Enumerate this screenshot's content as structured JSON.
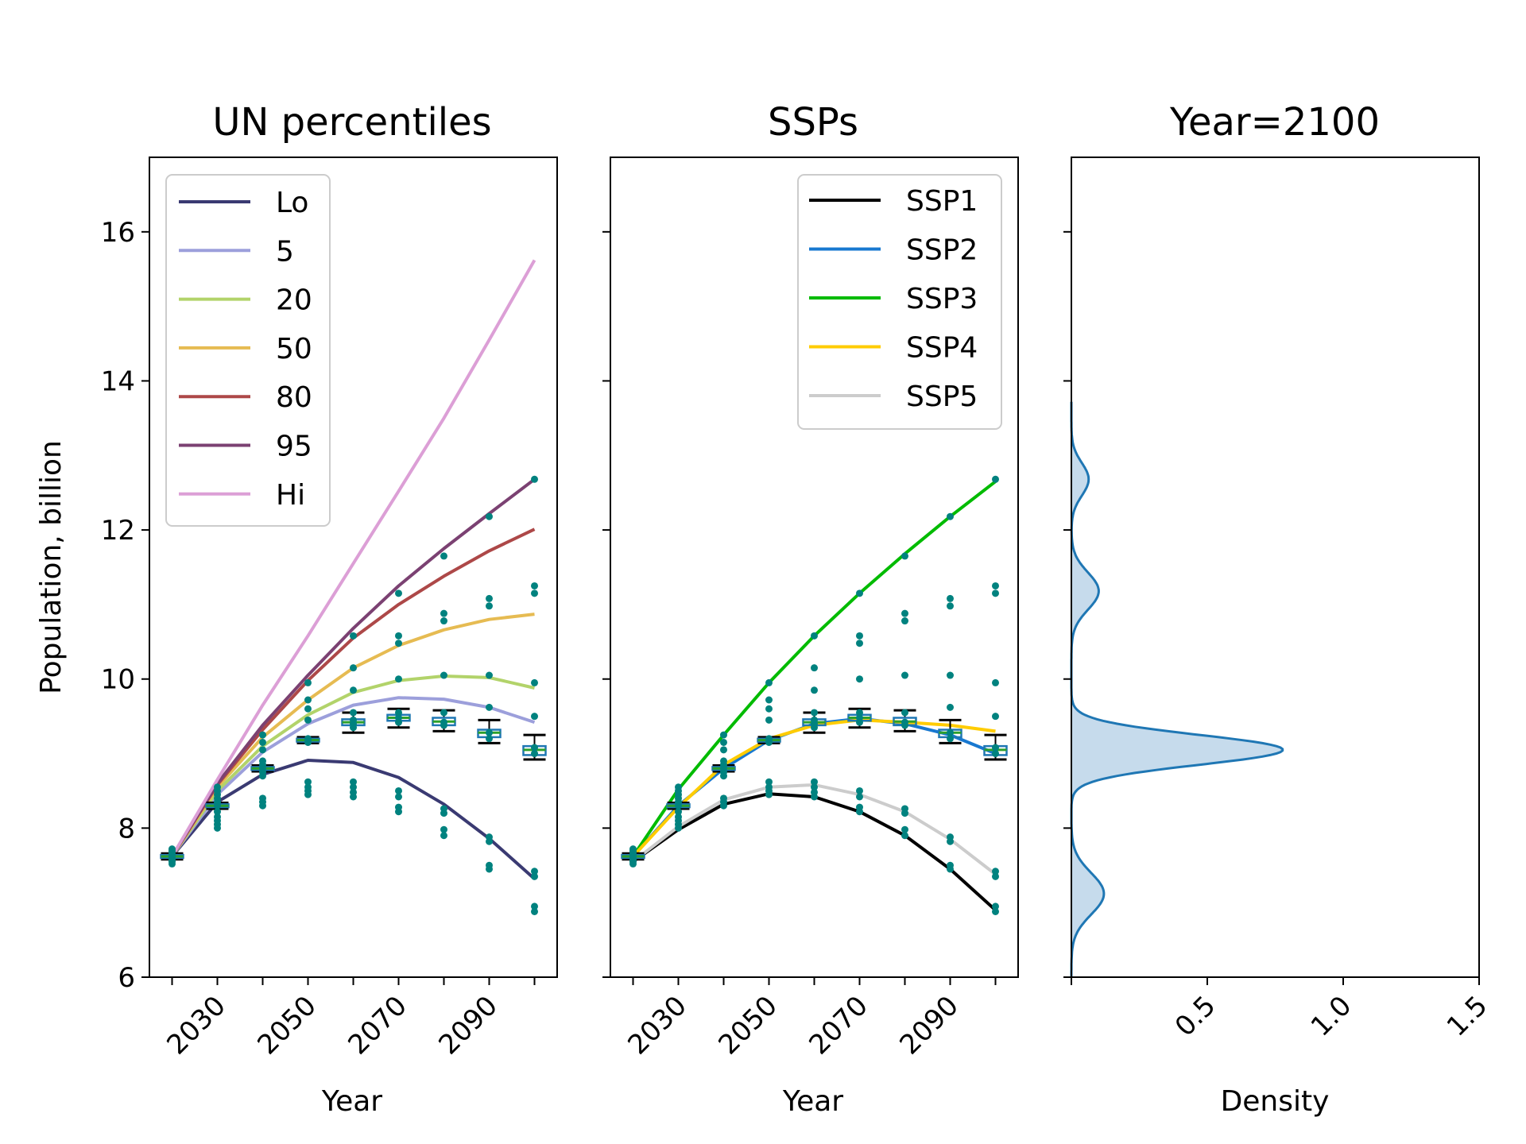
{
  "chart_data": [
    {
      "type": "line",
      "title": "UN percentiles",
      "xlabel": "Year",
      "ylabel": "Population, billion",
      "xlim": [
        2015,
        2105
      ],
      "ylim": [
        6,
        17
      ],
      "x_ticks": [
        2030,
        2050,
        2070,
        2090
      ],
      "y_ticks": [
        6,
        8,
        10,
        12,
        14,
        16
      ],
      "legend_position": "top-left",
      "x": [
        2020,
        2030,
        2040,
        2050,
        2060,
        2070,
        2080,
        2090,
        2100
      ],
      "series": [
        {
          "name": "Lo",
          "color": "#3a3a72",
          "values": [
            7.62,
            8.35,
            8.72,
            8.91,
            8.88,
            8.68,
            8.32,
            7.86,
            7.32
          ]
        },
        {
          "name": "5",
          "color": "#9c9fdb",
          "values": [
            7.62,
            8.45,
            9.02,
            9.4,
            9.65,
            9.75,
            9.73,
            9.62,
            9.42
          ]
        },
        {
          "name": "20",
          "color": "#b2d36a",
          "values": [
            7.62,
            8.5,
            9.1,
            9.52,
            9.82,
            9.98,
            10.04,
            10.02,
            9.88
          ]
        },
        {
          "name": "50",
          "color": "#e6bb52",
          "values": [
            7.62,
            8.55,
            9.22,
            9.72,
            10.15,
            10.45,
            10.66,
            10.8,
            10.87
          ]
        },
        {
          "name": "80",
          "color": "#ad4848",
          "values": [
            7.62,
            8.58,
            9.32,
            9.98,
            10.55,
            11.0,
            11.38,
            11.72,
            12.01
          ]
        },
        {
          "name": "95",
          "color": "#7b4172",
          "values": [
            7.62,
            8.6,
            9.38,
            10.05,
            10.68,
            11.25,
            11.75,
            12.22,
            12.68
          ]
        },
        {
          "name": "Hi",
          "color": "#dc9fd6",
          "values": [
            7.62,
            8.65,
            9.65,
            10.58,
            11.55,
            12.52,
            13.5,
            14.55,
            15.62
          ]
        }
      ]
    },
    {
      "type": "line",
      "title": "SSPs",
      "xlabel": "Year",
      "ylabel": "",
      "xlim": [
        2015,
        2105
      ],
      "ylim": [
        6,
        17
      ],
      "x_ticks": [
        2030,
        2050,
        2070,
        2090
      ],
      "legend_position": "top-right",
      "x": [
        2020,
        2030,
        2040,
        2050,
        2060,
        2070,
        2080,
        2090,
        2100
      ],
      "series": [
        {
          "name": "SSP1",
          "color": "#000000",
          "values": [
            7.55,
            7.98,
            8.32,
            8.46,
            8.42,
            8.22,
            7.9,
            7.45,
            6.9
          ]
        },
        {
          "name": "SSP2",
          "color": "#1878d0",
          "values": [
            7.62,
            8.3,
            8.8,
            9.18,
            9.4,
            9.47,
            9.4,
            9.25,
            9.0
          ]
        },
        {
          "name": "SSP3",
          "color": "#00bb00",
          "values": [
            7.62,
            8.52,
            9.25,
            9.95,
            10.58,
            11.15,
            11.68,
            12.18,
            12.65
          ]
        },
        {
          "name": "SSP4",
          "color": "#ffcc00",
          "values": [
            7.62,
            8.28,
            8.85,
            9.2,
            9.38,
            9.45,
            9.42,
            9.38,
            9.3
          ]
        },
        {
          "name": "SSP5",
          "color": "#cccccc",
          "values": [
            7.55,
            8.02,
            8.38,
            8.55,
            8.58,
            8.45,
            8.22,
            7.85,
            7.38
          ]
        }
      ]
    },
    {
      "type": "area",
      "title": "Year=2100",
      "xlabel": "Density",
      "ylabel": "",
      "xlim": [
        0,
        1.5
      ],
      "ylim": [
        6,
        17
      ],
      "x_ticks": [
        0.5,
        1.0,
        1.5
      ],
      "orientation": "horizontal",
      "color": "#1f77b4",
      "fill_color": "#c6dbec",
      "components": [
        {
          "mean": 9.05,
          "sd": 0.2,
          "weight": 0.39
        },
        {
          "mean": 7.12,
          "sd": 0.28,
          "weight": 0.084
        },
        {
          "mean": 11.18,
          "sd": 0.25,
          "weight": 0.063
        },
        {
          "mean": 12.68,
          "sd": 0.22,
          "weight": 0.035
        }
      ]
    }
  ],
  "scatter_points": {
    "x": [
      2020,
      2030,
      2040,
      2050,
      2060,
      2070,
      2080,
      2090,
      2100
    ],
    "values": [
      [
        7.52,
        7.56,
        7.6,
        7.62,
        7.64,
        7.68,
        7.72,
        7.55,
        7.65,
        7.7,
        7.58
      ],
      [
        8.0,
        8.05,
        8.1,
        8.15,
        8.22,
        8.3,
        8.35,
        8.4,
        8.45,
        8.5,
        8.55
      ],
      [
        8.3,
        8.35,
        8.4,
        8.7,
        8.75,
        8.8,
        8.85,
        8.9,
        9.05,
        9.15,
        9.25
      ],
      [
        8.45,
        8.5,
        8.55,
        8.62,
        9.15,
        9.18,
        9.2,
        9.45,
        9.6,
        9.72,
        9.95
      ],
      [
        8.42,
        8.48,
        8.55,
        8.62,
        9.35,
        9.4,
        9.45,
        9.55,
        9.85,
        10.15,
        10.58
      ],
      [
        8.22,
        8.28,
        8.42,
        8.5,
        9.42,
        9.48,
        9.55,
        10.0,
        10.48,
        10.58,
        11.15
      ],
      [
        7.9,
        7.98,
        8.2,
        8.26,
        9.38,
        9.42,
        9.55,
        10.05,
        10.78,
        10.88,
        11.65
      ],
      [
        7.45,
        7.5,
        7.82,
        7.88,
        9.2,
        9.28,
        9.62,
        10.05,
        10.98,
        11.08,
        12.18
      ],
      [
        6.88,
        6.95,
        7.35,
        7.42,
        9.0,
        9.08,
        9.5,
        9.95,
        11.15,
        11.25,
        12.68
      ]
    ]
  },
  "boxplots": {
    "x": [
      2020,
      2030,
      2040,
      2050,
      2060,
      2070,
      2080,
      2090,
      2100
    ],
    "median": [
      7.62,
      8.3,
      8.8,
      9.18,
      9.42,
      9.48,
      9.43,
      9.28,
      9.05
    ],
    "q1": [
      7.6,
      8.28,
      8.78,
      9.16,
      9.38,
      9.44,
      9.38,
      9.22,
      8.98
    ],
    "q3": [
      7.64,
      8.32,
      8.82,
      9.2,
      9.46,
      9.52,
      9.48,
      9.32,
      9.1
    ],
    "whisker_low": [
      7.58,
      8.26,
      8.76,
      9.14,
      9.28,
      9.35,
      9.3,
      9.14,
      8.92
    ],
    "whisker_high": [
      7.66,
      8.34,
      8.84,
      9.22,
      9.55,
      9.6,
      9.58,
      9.45,
      9.25
    ],
    "box_color": "#1f77b4",
    "median_color": "#2ca02c",
    "point_color": "#00827f"
  }
}
